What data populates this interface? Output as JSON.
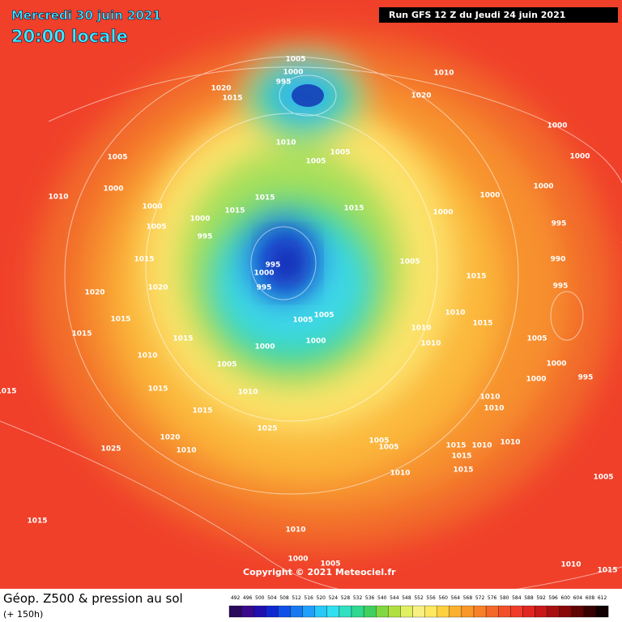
{
  "header": {
    "date": "Mercredi 30 juin 2021",
    "time": "20:00 locale",
    "run": "Run GFS 12 Z du Jeudi 24 juin 2021"
  },
  "copyright": "Copyright © 2021 Meteociel.fr",
  "footer": {
    "title": "Géop. Z500 & pression au sol",
    "lead": "(+ 150h)"
  },
  "legend": {
    "values": [
      492,
      496,
      500,
      504,
      508,
      512,
      516,
      520,
      524,
      528,
      532,
      536,
      540,
      544,
      548,
      552,
      556,
      560,
      564,
      568,
      572,
      576,
      580,
      584,
      588,
      592,
      596,
      600,
      604,
      608,
      612
    ]
  },
  "pressure_labels": [
    1005,
    1000,
    995,
    1020,
    1015,
    1010,
    1020,
    1010,
    1005,
    1005,
    1000,
    1000,
    1005,
    1000,
    1010,
    1000,
    1015,
    1015,
    1015,
    1000,
    1000,
    1000,
    995,
    1000,
    1005,
    995,
    1015,
    995,
    1000,
    995,
    1005,
    990,
    1015,
    995,
    1020,
    1020,
    1015,
    1005,
    1005,
    1010,
    1015,
    1010,
    1015,
    1015,
    1000,
    1000,
    1010,
    1005,
    1010,
    1005,
    1000,
    995,
    1000,
    1015,
    1015,
    1010,
    1010,
    1010,
    1015,
    1025,
    1020,
    1005,
    1005,
    1015,
    1010,
    1010,
    1025,
    1010,
    1015,
    1015,
    1010,
    1005,
    1015,
    1010,
    1000,
    1005,
    1010,
    1015
  ]
}
